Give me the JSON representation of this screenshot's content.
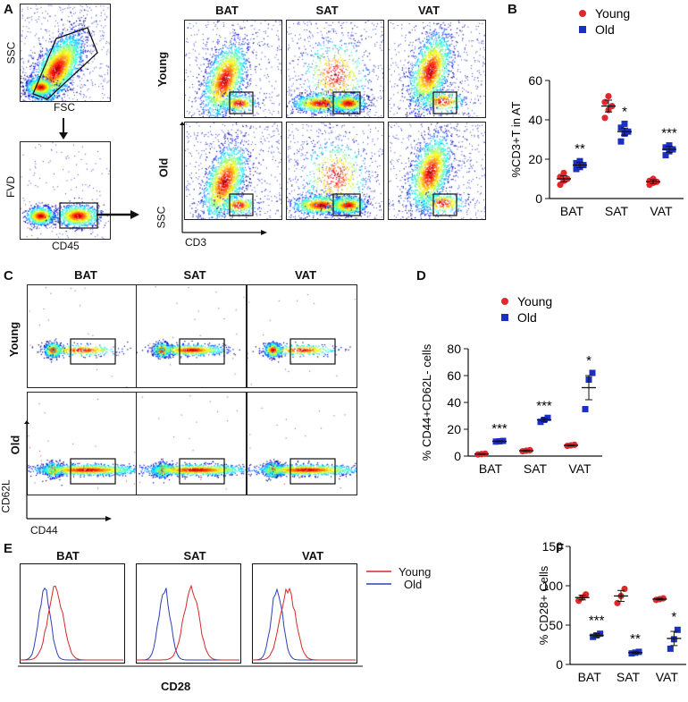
{
  "colors": {
    "young": "#e0282c",
    "old": "#1b2fc0",
    "histYoung": "#d8262c",
    "histOld": "#2b3fb8"
  },
  "panelA": {
    "letter": "A",
    "gate_ssc": "SSC",
    "gate_fsc": "FSC",
    "gate_fvd": "FVD",
    "gate_cd45": "CD45",
    "columns": [
      "BAT",
      "SAT",
      "VAT"
    ],
    "rows": [
      "Young",
      "Old"
    ],
    "x_label": "CD3",
    "y_label": "SSC"
  },
  "panelC": {
    "letter": "C",
    "columns": [
      "BAT",
      "SAT",
      "VAT"
    ],
    "rows": [
      "Young",
      "Old"
    ],
    "x_label": "CD44",
    "y_label": "CD62L"
  },
  "panelE": {
    "letter": "E",
    "columns": [
      "BAT",
      "SAT",
      "VAT"
    ],
    "x_label": "CD28",
    "legend": [
      "Young",
      "Old"
    ]
  },
  "chart_data": [
    {
      "id": "B",
      "letter": "B",
      "type": "scatter",
      "categories": [
        "BAT",
        "SAT",
        "VAT"
      ],
      "ylabel": "%CD3+T in AT",
      "ylim": [
        0,
        60
      ],
      "yticks": [
        0,
        20,
        40,
        60
      ],
      "legend": [
        "Young",
        "Old"
      ],
      "legend_position": "top-right",
      "significance": [
        "**",
        "*",
        "***"
      ],
      "series": [
        {
          "name": "Young",
          "means": [
            10,
            47,
            8.5
          ],
          "sem": [
            1.5,
            3,
            1
          ],
          "points": [
            [
              7,
              9,
              10,
              11,
              13
            ],
            [
              41,
              45,
              47,
              49,
              52
            ],
            [
              7,
              8,
              8.5,
              9,
              10
            ]
          ]
        },
        {
          "name": "Old",
          "means": [
            17,
            34,
            25
          ],
          "sem": [
            1.3,
            1.8,
            1.5
          ],
          "points": [
            [
              15,
              16,
              17,
              18,
              19
            ],
            [
              29,
              33,
              34,
              36,
              38
            ],
            [
              22,
              24,
              25,
              26,
              27
            ]
          ]
        }
      ]
    },
    {
      "id": "D",
      "letter": "D",
      "type": "scatter",
      "categories": [
        "BAT",
        "SAT",
        "VAT"
      ],
      "ylabel": "% CD44+CD62L- cells",
      "ylim": [
        0,
        80
      ],
      "yticks": [
        0,
        20,
        40,
        60,
        80
      ],
      "legend": [
        "Young",
        "Old"
      ],
      "legend_position": "top-right",
      "significance": [
        "***",
        "***",
        "*"
      ],
      "series": [
        {
          "name": "Young",
          "means": [
            1.5,
            4,
            8
          ],
          "sem": [
            0.3,
            0.4,
            0.4
          ],
          "points": [
            [
              1.2,
              1.5,
              1.8
            ],
            [
              3.6,
              4,
              4.4
            ],
            [
              7.6,
              8,
              8.4
            ]
          ]
        },
        {
          "name": "Old",
          "means": [
            11,
            27,
            51
          ],
          "sem": [
            0.3,
            1.2,
            9
          ],
          "points": [
            [
              10.8,
              11,
              11.3
            ],
            [
              25.5,
              27,
              28.5
            ],
            [
              35,
              57,
              62
            ]
          ]
        }
      ]
    },
    {
      "id": "F",
      "letter": "F",
      "type": "scatter",
      "categories": [
        "BAT",
        "SAT",
        "VAT"
      ],
      "ylabel": "% CD28+ Cells",
      "ylim": [
        0,
        150
      ],
      "yticks": [
        0,
        50,
        100,
        150
      ],
      "significance": [
        "***",
        "**",
        "*"
      ],
      "series": [
        {
          "name": "Young",
          "means": [
            85,
            87,
            83
          ],
          "sem": [
            3,
            7,
            1
          ],
          "points": [
            [
              81,
              85,
              89
            ],
            [
              78,
              87,
              96
            ],
            [
              82,
              83,
              84
            ]
          ]
        },
        {
          "name": "Old",
          "means": [
            37,
            15,
            33
          ],
          "sem": [
            2,
            1,
            9
          ],
          "points": [
            [
              35,
              37,
              39
            ],
            [
              14,
              15,
              16
            ],
            [
              20,
              32,
              44
            ]
          ]
        }
      ]
    }
  ]
}
